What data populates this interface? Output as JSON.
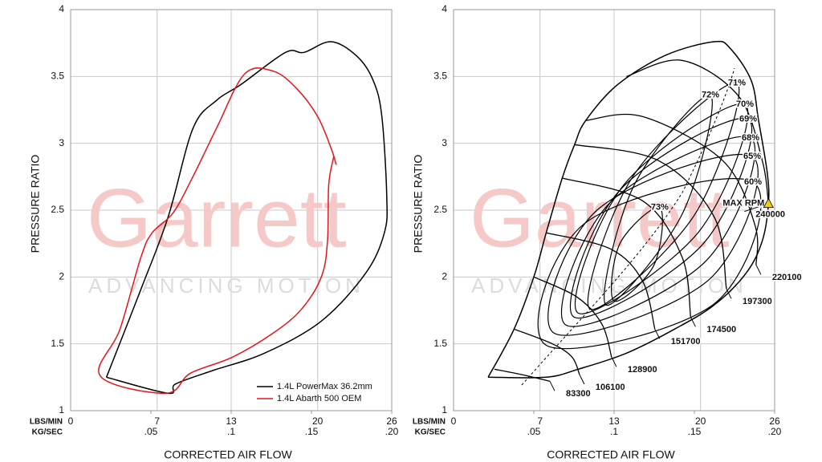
{
  "chart_data": [
    {
      "type": "line",
      "xlabel": "CORRECTED AIR FLOW",
      "ylabel": "PRESSURE RATIO",
      "x_unit_label": "LBS/MIN",
      "x2_unit_label": "KG/SEC",
      "xlim": [
        0,
        26
      ],
      "xticks": [
        0,
        7,
        13,
        20,
        26
      ],
      "x2lim": [
        0,
        0.2
      ],
      "x2ticks": [
        {
          "value": 0.05,
          "label": ".05"
        },
        {
          "value": 0.1,
          "label": ".1"
        },
        {
          "value": 0.15,
          "label": ".15"
        },
        {
          "value": 0.2,
          "label": ".20"
        }
      ],
      "ylim": [
        1,
        4
      ],
      "yticks": [
        1,
        1.5,
        2,
        2.5,
        3,
        3.5,
        4
      ],
      "grid": true,
      "watermark": {
        "brand": "Garrett",
        "tagline": "ADVANCING MOTION"
      },
      "legend": "lower right",
      "series": [
        {
          "name": "1.4L PowerMax 36.2mm",
          "color": "#000000",
          "x": [
            2.9,
            5.7,
            7.9,
            9.9,
            11.8,
            13.8,
            17.4,
            18.9,
            21.1,
            23.2,
            24.5,
            25.2,
            25.6,
            25.4,
            23.9,
            20.3,
            15.7,
            11.5,
            8.5,
            7.9,
            2.9
          ],
          "values": [
            1.25,
            1.91,
            2.45,
            3.11,
            3.32,
            3.44,
            3.68,
            3.68,
            3.76,
            3.65,
            3.47,
            3.2,
            2.6,
            2.33,
            2.03,
            1.67,
            1.43,
            1.3,
            1.2,
            1.13,
            1.25
          ]
        },
        {
          "name": "1.4L Abarth 500 OEM",
          "color": "#e8141c",
          "x": [
            21.5,
            21.1,
            20.0,
            18.3,
            16.4,
            14.1,
            11.8,
            9.9,
            8.3,
            6.6,
            5.7,
            4.0,
            2.4,
            7.7,
            9.7,
            13.1,
            16.4,
            18.7,
            20.3,
            20.8,
            20.9,
            21.3
          ],
          "values": [
            2.84,
            2.96,
            3.2,
            3.41,
            3.54,
            3.52,
            3.11,
            2.75,
            2.48,
            2.33,
            2.15,
            1.61,
            1.26,
            1.13,
            1.28,
            1.4,
            1.58,
            1.76,
            2.0,
            2.27,
            2.69,
            2.9
          ]
        }
      ]
    },
    {
      "type": "compressor_map",
      "xlabel": "CORRECTED AIR FLOW",
      "ylabel": "PRESSURE RATIO",
      "x_unit_label": "LBS/MIN",
      "x2_unit_label": "KG/SEC",
      "xlim": [
        0,
        26
      ],
      "xticks": [
        0,
        7,
        13,
        20,
        26
      ],
      "x2lim": [
        0,
        0.2
      ],
      "x2ticks": [
        {
          "value": 0.05,
          "label": ".05"
        },
        {
          "value": 0.1,
          "label": ".1"
        },
        {
          "value": 0.15,
          "label": ".15"
        },
        {
          "value": 0.2,
          "label": ".20"
        }
      ],
      "ylim": [
        1,
        4
      ],
      "yticks": [
        1,
        1.5,
        2,
        2.5,
        3,
        3.5,
        4
      ],
      "grid": true,
      "watermark": {
        "brand": "Garrett",
        "tagline": "ADVANCING MOTION"
      },
      "label_color": "#e8141c",
      "annotation": "MAX RPM",
      "outline": {
        "x": [
          2.8,
          4.9,
          6.5,
          7.5,
          8.8,
          9.8,
          10.7,
          13.3,
          17.2,
          21.1,
          22.4,
          24.1,
          24.7,
          25.4,
          25.5,
          25.0,
          23.7,
          21.1,
          17.9,
          14.0,
          10.1,
          7.5,
          2.8
        ],
        "values": [
          1.25,
          1.61,
          2.0,
          2.33,
          2.74,
          2.99,
          3.17,
          3.44,
          3.66,
          3.76,
          3.71,
          3.47,
          3.17,
          2.78,
          2.55,
          2.27,
          2.03,
          1.79,
          1.61,
          1.43,
          1.31,
          1.25,
          1.25
        ]
      },
      "speed_lines": [
        {
          "name": "83300",
          "x": [
            3.3,
            5.5,
            7.8
          ],
          "values": [
            1.31,
            1.27,
            1.22
          ]
        },
        {
          "name": "106100",
          "x": [
            4.9,
            8.0,
            9.6,
            10.2
          ],
          "values": [
            1.61,
            1.5,
            1.4,
            1.27
          ]
        },
        {
          "name": "128900",
          "x": [
            6.5,
            10.0,
            12.0,
            12.8
          ],
          "values": [
            2.0,
            1.85,
            1.65,
            1.4
          ]
        },
        {
          "name": "151700",
          "x": [
            7.5,
            12.7,
            15.3,
            16.3
          ],
          "values": [
            2.33,
            2.21,
            1.97,
            1.61
          ]
        },
        {
          "name": "174500",
          "x": [
            8.8,
            15.3,
            18.5,
            19.2
          ],
          "values": [
            2.74,
            2.57,
            2.15,
            1.7
          ]
        },
        {
          "name": "197300",
          "x": [
            9.8,
            16.6,
            21.1,
            22.1
          ],
          "values": [
            2.99,
            2.87,
            2.45,
            1.91
          ]
        },
        {
          "name": "220100",
          "x": [
            10.7,
            15.3,
            21.8,
            24.4,
            24.5
          ],
          "values": [
            3.17,
            3.2,
            2.87,
            2.39,
            2.09
          ]
        },
        {
          "name": "240000",
          "x": [
            14.0,
            18.5,
            23.1,
            25.0,
            25.5
          ],
          "values": [
            3.5,
            3.62,
            3.35,
            2.87,
            2.55
          ]
        }
      ],
      "efficiency_islands": [
        {
          "name": "73%",
          "x": [
            13.0,
            13.47,
            16.7,
            16.24
          ],
          "values": [
            1.82,
            2.25,
            2.52,
            2.09
          ]
        },
        {
          "name": "72%",
          "x": [
            12.35,
            14.64,
            20.8,
            18.51
          ],
          "values": [
            1.79,
            2.69,
            3.36,
            2.47
          ]
        },
        {
          "name": "71%",
          "x": [
            11.05,
            14.51,
            22.95,
            19.48
          ],
          "values": [
            1.76,
            2.75,
            3.45,
            2.46
          ]
        },
        {
          "name": "70%",
          "x": [
            10.08,
            13.8,
            23.6,
            19.87
          ],
          "values": [
            1.73,
            2.69,
            3.29,
            2.34
          ]
        },
        {
          "name": "69%",
          "x": [
            9.75,
            13.38,
            23.86,
            20.23
          ],
          "values": [
            1.7,
            2.64,
            3.18,
            2.25
          ]
        },
        {
          "name": "68%",
          "x": [
            9.1,
            12.71,
            24.05,
            20.44
          ],
          "values": [
            1.64,
            2.56,
            3.04,
            2.12
          ]
        },
        {
          "name": "65%",
          "x": [
            8.13,
            11.62,
            24.18,
            20.68
          ],
          "values": [
            1.58,
            2.5,
            2.9,
            1.98
          ]
        },
        {
          "name": "60%",
          "x": [
            7.48,
            10.61,
            24.25,
            21.11
          ],
          "values": [
            1.49,
            2.4,
            2.71,
            1.8
          ]
        }
      ]
    }
  ]
}
